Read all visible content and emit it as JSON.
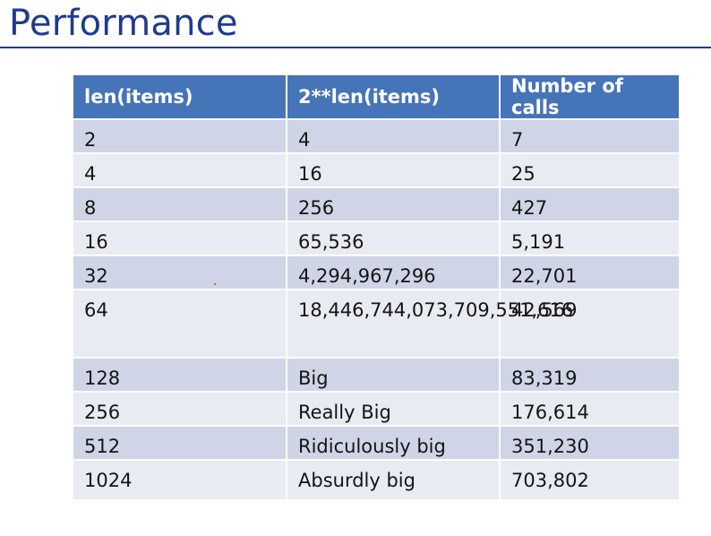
{
  "title": "Performance",
  "table": {
    "headers": [
      "len(items)",
      "2**len(items)",
      "Number of calls"
    ],
    "rows": [
      [
        "2",
        "4",
        "7"
      ],
      [
        "4",
        "16",
        "25"
      ],
      [
        "8",
        "256",
        "427"
      ],
      [
        "16",
        "65,536",
        "5,191"
      ],
      [
        "32",
        "4,294,967,296",
        "22,701"
      ],
      [
        "64",
        "18,446,744,073,709,551,616",
        "42,569"
      ],
      [
        "128",
        "Big",
        "83,319"
      ],
      [
        "256",
        "Really Big",
        "176,614"
      ],
      [
        "512",
        "Ridiculously big",
        "351,230"
      ],
      [
        "1024",
        "Absurdly big",
        "703,802"
      ]
    ]
  },
  "colors": {
    "title": "#1f3a8f",
    "header_bg": "#4674b9",
    "row_odd": "#cfd5e6",
    "row_even": "#e8ebf2"
  }
}
